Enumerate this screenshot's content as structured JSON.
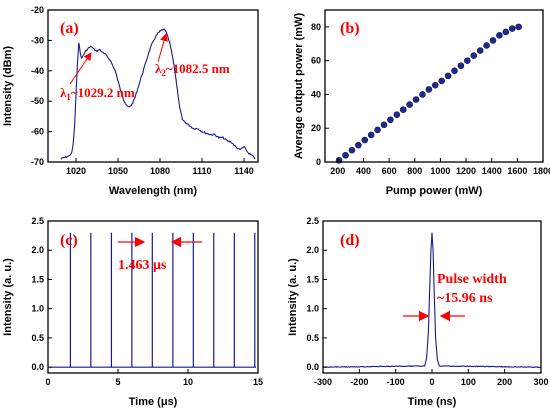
{
  "colors": {
    "trace": "#1a1a8c",
    "marker": "#1f2a8a",
    "annotation": "#ff0000",
    "axis": "#000000"
  },
  "chart_data": [
    {
      "panel": "(a)",
      "type": "line",
      "xlabel": "Wavelength (nm)",
      "ylabel": "Intensity (dBm)",
      "xlim": [
        1000,
        1150
      ],
      "ylim": [
        -70,
        -20
      ],
      "xticks": [
        1020,
        1050,
        1080,
        1110,
        1140
      ],
      "yticks": [
        -70,
        -60,
        -50,
        -40,
        -30,
        -20
      ],
      "x": [
        1009,
        1012,
        1015,
        1017,
        1018,
        1019,
        1020,
        1021,
        1022,
        1023,
        1024,
        1025,
        1027,
        1029,
        1031,
        1033,
        1035,
        1037,
        1039,
        1042,
        1045,
        1048,
        1051,
        1054,
        1056,
        1058,
        1060,
        1062,
        1064,
        1066,
        1068,
        1070,
        1072,
        1074,
        1076,
        1078,
        1080,
        1082,
        1083,
        1084,
        1085,
        1086,
        1087,
        1088,
        1090,
        1092,
        1094,
        1096,
        1098,
        1101,
        1104,
        1107,
        1110,
        1113,
        1116,
        1119,
        1122,
        1125,
        1128,
        1131,
        1134,
        1137,
        1140,
        1143,
        1146,
        1148
      ],
      "y": [
        -69,
        -68.5,
        -68,
        -67,
        -64,
        -58,
        -48,
        -38,
        -30.5,
        -34,
        -36,
        -35,
        -33.5,
        -32.5,
        -32,
        -33,
        -33.5,
        -33,
        -34,
        -35,
        -37,
        -40,
        -45,
        -49.5,
        -51.5,
        -52,
        -51,
        -49,
        -46,
        -43,
        -40,
        -37,
        -34,
        -31.5,
        -29.5,
        -28,
        -27,
        -26.5,
        -26.5,
        -27,
        -28,
        -29.5,
        -31,
        -33,
        -38,
        -45,
        -52,
        -56,
        -57,
        -58,
        -59,
        -59,
        -60,
        -60.5,
        -61,
        -61,
        -62,
        -62,
        -63,
        -63.5,
        -65,
        -66,
        -65,
        -67,
        -68,
        -69
      ],
      "annotations": [
        {
          "text_prefix": "λ",
          "subscript": "1",
          "text_rest": "~1029.2 nm"
        },
        {
          "text_prefix": "λ",
          "subscript": "2",
          "text_rest": "~1082.5 nm"
        }
      ]
    },
    {
      "panel": "(b)",
      "type": "scatter",
      "xlabel": "Pump power (mW)",
      "ylabel": "Average output power (mW)",
      "xlim": [
        100,
        1800
      ],
      "ylim": [
        0,
        90
      ],
      "xticks": [
        200,
        400,
        600,
        800,
        1000,
        1200,
        1400,
        1600,
        1800
      ],
      "yticks": [
        0,
        20,
        40,
        60,
        80
      ],
      "x": [
        210,
        260,
        310,
        360,
        410,
        460,
        510,
        560,
        610,
        660,
        710,
        760,
        810,
        860,
        910,
        960,
        1010,
        1060,
        1110,
        1160,
        1210,
        1260,
        1310,
        1360,
        1410,
        1460,
        1510,
        1560,
        1610
      ],
      "y": [
        1,
        4,
        7,
        10,
        13,
        16,
        19,
        22,
        25,
        28,
        31,
        34,
        37,
        40,
        43,
        45.5,
        48,
        51,
        54,
        57,
        60,
        63,
        66,
        69,
        72,
        75,
        77,
        79,
        80
      ]
    },
    {
      "panel": "(c)",
      "type": "line",
      "xlabel": "Time (μs)",
      "ylabel": "Intensity (a. u.)",
      "xlim": [
        0,
        15
      ],
      "ylim": [
        -0.1,
        2.5
      ],
      "xticks": [
        0,
        5,
        10,
        15
      ],
      "yticks": [
        0.0,
        0.5,
        1.0,
        1.5,
        2.0,
        2.5
      ],
      "pulse_times": [
        1.6,
        3.06,
        4.53,
        5.99,
        7.45,
        8.92,
        10.38,
        11.84,
        13.31,
        14.77
      ],
      "pulse_height": 2.3,
      "baseline": 0.0,
      "annotation": "1.463 μs"
    },
    {
      "panel": "(d)",
      "type": "line",
      "xlabel": "Time (ns)",
      "ylabel": "Intensity (a. u.)",
      "xlim": [
        -300,
        300
      ],
      "ylim": [
        -0.1,
        2.5
      ],
      "xticks": [
        -300,
        -200,
        -100,
        0,
        100,
        200,
        300
      ],
      "yticks": [
        0.0,
        0.5,
        1.0,
        1.5,
        2.0,
        2.5
      ],
      "x": [
        -300,
        -20,
        -15,
        -10,
        -6,
        -3,
        0,
        3,
        6,
        10,
        15,
        20,
        300
      ],
      "y": [
        0,
        0.02,
        0.15,
        0.6,
        1.4,
        2.0,
        2.3,
        2.0,
        1.3,
        0.5,
        0.12,
        0.02,
        0
      ],
      "annotation_line1": "Pulse width",
      "annotation_line2": "~15.96 ns"
    }
  ]
}
